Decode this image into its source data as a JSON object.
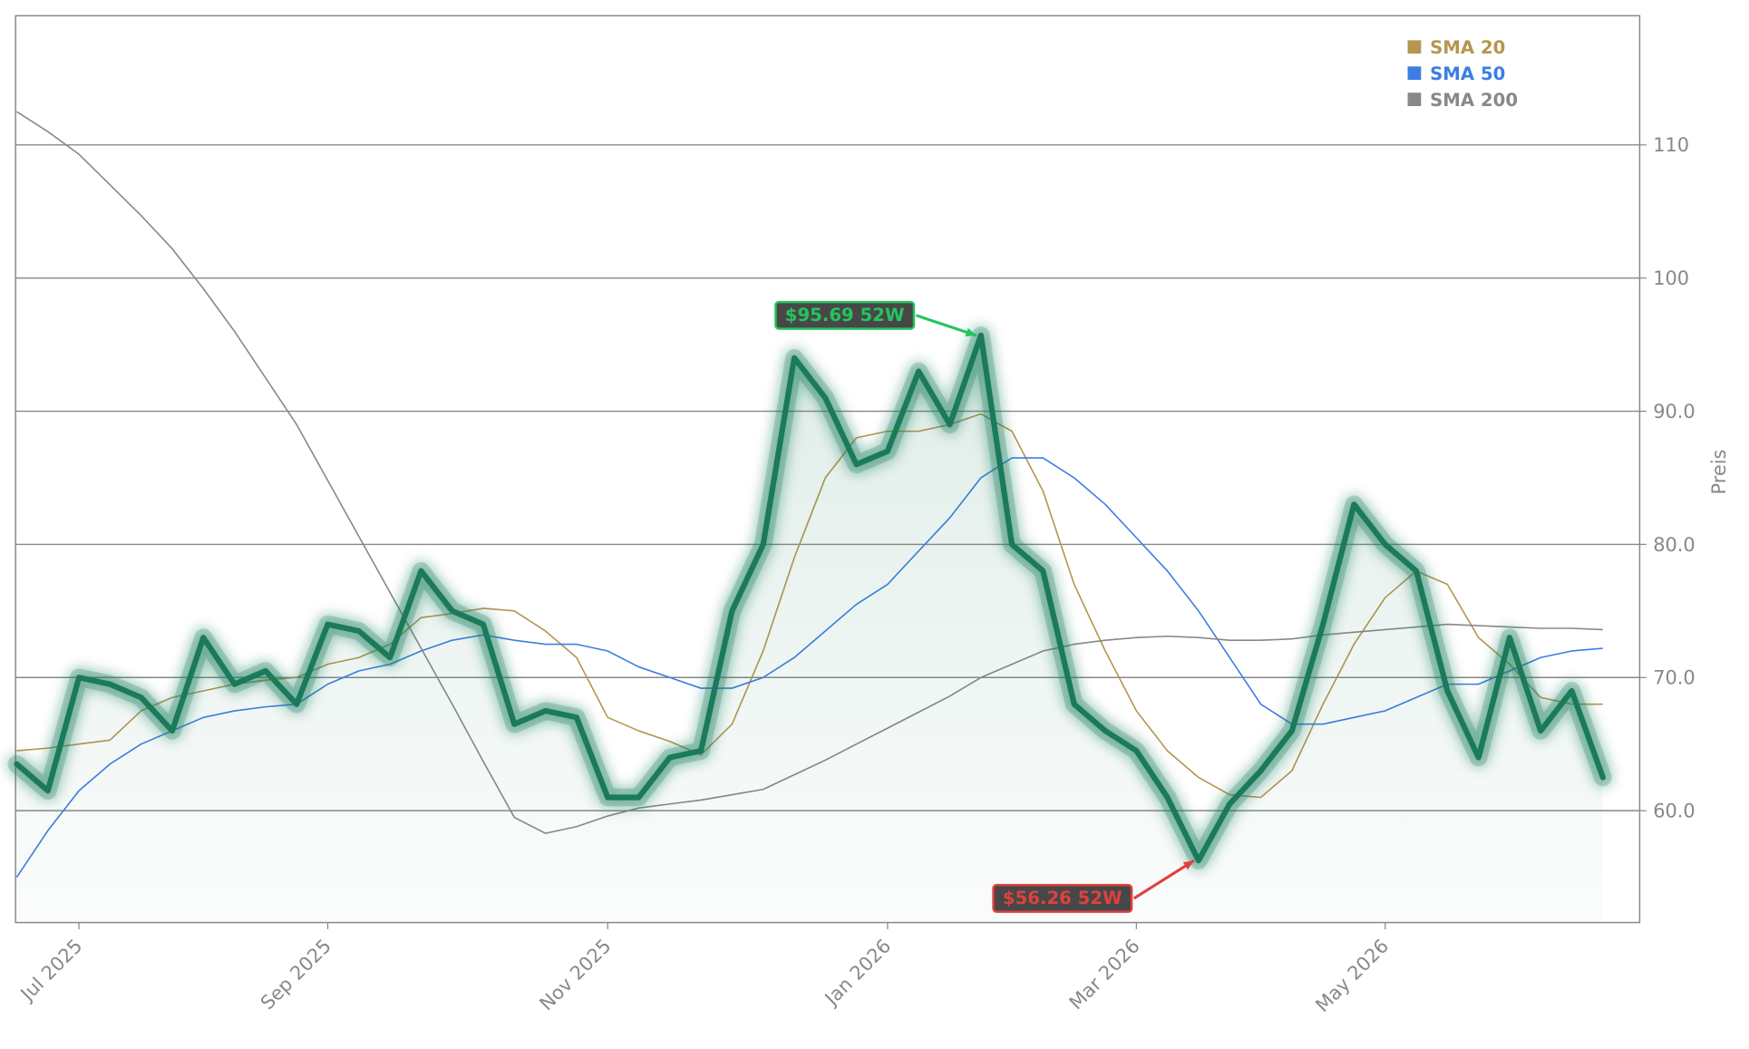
{
  "chart_data": {
    "type": "line",
    "y_label": "Preis",
    "categories": [
      null,
      null,
      "Jul 2025",
      null,
      null,
      null,
      null,
      null,
      null,
      null,
      "Sep 2025",
      null,
      null,
      null,
      null,
      null,
      null,
      null,
      null,
      "Nov 2025",
      null,
      null,
      null,
      null,
      null,
      null,
      null,
      null,
      "Jan 2026",
      null,
      null,
      null,
      null,
      null,
      null,
      null,
      "Mar 2026",
      null,
      null,
      null,
      null,
      null,
      null,
      null,
      "May 2026",
      null,
      null,
      null,
      null,
      null,
      null,
      null
    ],
    "series": [
      {
        "name": "Preis",
        "color": "#1a7a5a",
        "legend": false,
        "values": [
          63.5,
          61.5,
          70,
          69.5,
          68.5,
          66,
          73,
          69.5,
          70.5,
          68,
          74,
          73.5,
          71.5,
          78,
          75,
          74,
          66.5,
          67.5,
          67,
          61,
          61,
          64,
          64.5,
          75,
          80,
          94,
          91,
          86,
          87,
          93,
          89,
          95.69,
          80,
          78,
          68,
          66,
          64.5,
          61,
          56.26,
          60.5,
          63,
          66,
          74,
          83,
          80,
          78,
          69,
          64,
          73,
          66,
          69,
          62.5
        ]
      },
      {
        "name": "SMA 20",
        "color": "#b5964f",
        "values": [
          64.5,
          64.7,
          65,
          65.3,
          67.5,
          68.5,
          69,
          69.5,
          69.8,
          70,
          71,
          71.5,
          72.5,
          74.5,
          74.8,
          75.2,
          75,
          73.5,
          71.5,
          67,
          66,
          65.2,
          64.2,
          66.5,
          72,
          79,
          85,
          88,
          88.5,
          88.5,
          89,
          89.8,
          88.5,
          84,
          77,
          72,
          67.5,
          64.5,
          62.5,
          61.2,
          61,
          63,
          68,
          72.5,
          76,
          78,
          77,
          73,
          71,
          68.5,
          68,
          68
        ]
      },
      {
        "name": "SMA 50",
        "color": "#3a7ee4",
        "values": [
          55,
          58.5,
          61.5,
          63.5,
          65,
          66,
          67,
          67.5,
          67.8,
          68,
          69.5,
          70.5,
          71,
          72,
          72.8,
          73.2,
          72.8,
          72.5,
          72.5,
          72,
          70.8,
          70,
          69.2,
          69.2,
          70,
          71.5,
          73.5,
          75.5,
          77,
          79.5,
          82,
          85,
          86.5,
          86.5,
          85,
          83,
          80.5,
          78,
          75,
          71.5,
          68,
          66.5,
          66.5,
          67,
          67.5,
          68.5,
          69.5,
          69.5,
          70.5,
          71.5,
          72,
          72.2
        ]
      },
      {
        "name": "SMA 200",
        "color": "#888888",
        "values": [
          112.5,
          111,
          109.3,
          107,
          104.7,
          102.2,
          99.2,
          96,
          92.5,
          89,
          84.8,
          80.6,
          76.4,
          72.2,
          68,
          63.7,
          59.5,
          58.3,
          58.8,
          59.6,
          60.2,
          60.5,
          60.8,
          61.2,
          61.6,
          62.7,
          63.8,
          65,
          66.2,
          67.4,
          68.6,
          70,
          71,
          72,
          72.5,
          72.8,
          73,
          73.1,
          73,
          72.8,
          72.8,
          72.9,
          73.2,
          73.4,
          73.6,
          73.8,
          74,
          73.9,
          73.8,
          73.7,
          73.7,
          73.6
        ]
      }
    ],
    "annotations": [
      {
        "text": "$95.69 52W",
        "value": 95.69,
        "color": "#22c55e"
      },
      {
        "text": "$56.26 52W",
        "value": 56.26,
        "color": "#e04040"
      }
    ],
    "ylim": [
      51.6,
      119.7
    ],
    "yticks": [
      {
        "value": 60,
        "label": "60.0"
      },
      {
        "value": 70,
        "label": "70.0"
      },
      {
        "value": 80,
        "label": "80.0"
      },
      {
        "value": 90,
        "label": "90.0"
      },
      100,
      110
    ],
    "grid": true,
    "legend": "upper right"
  }
}
